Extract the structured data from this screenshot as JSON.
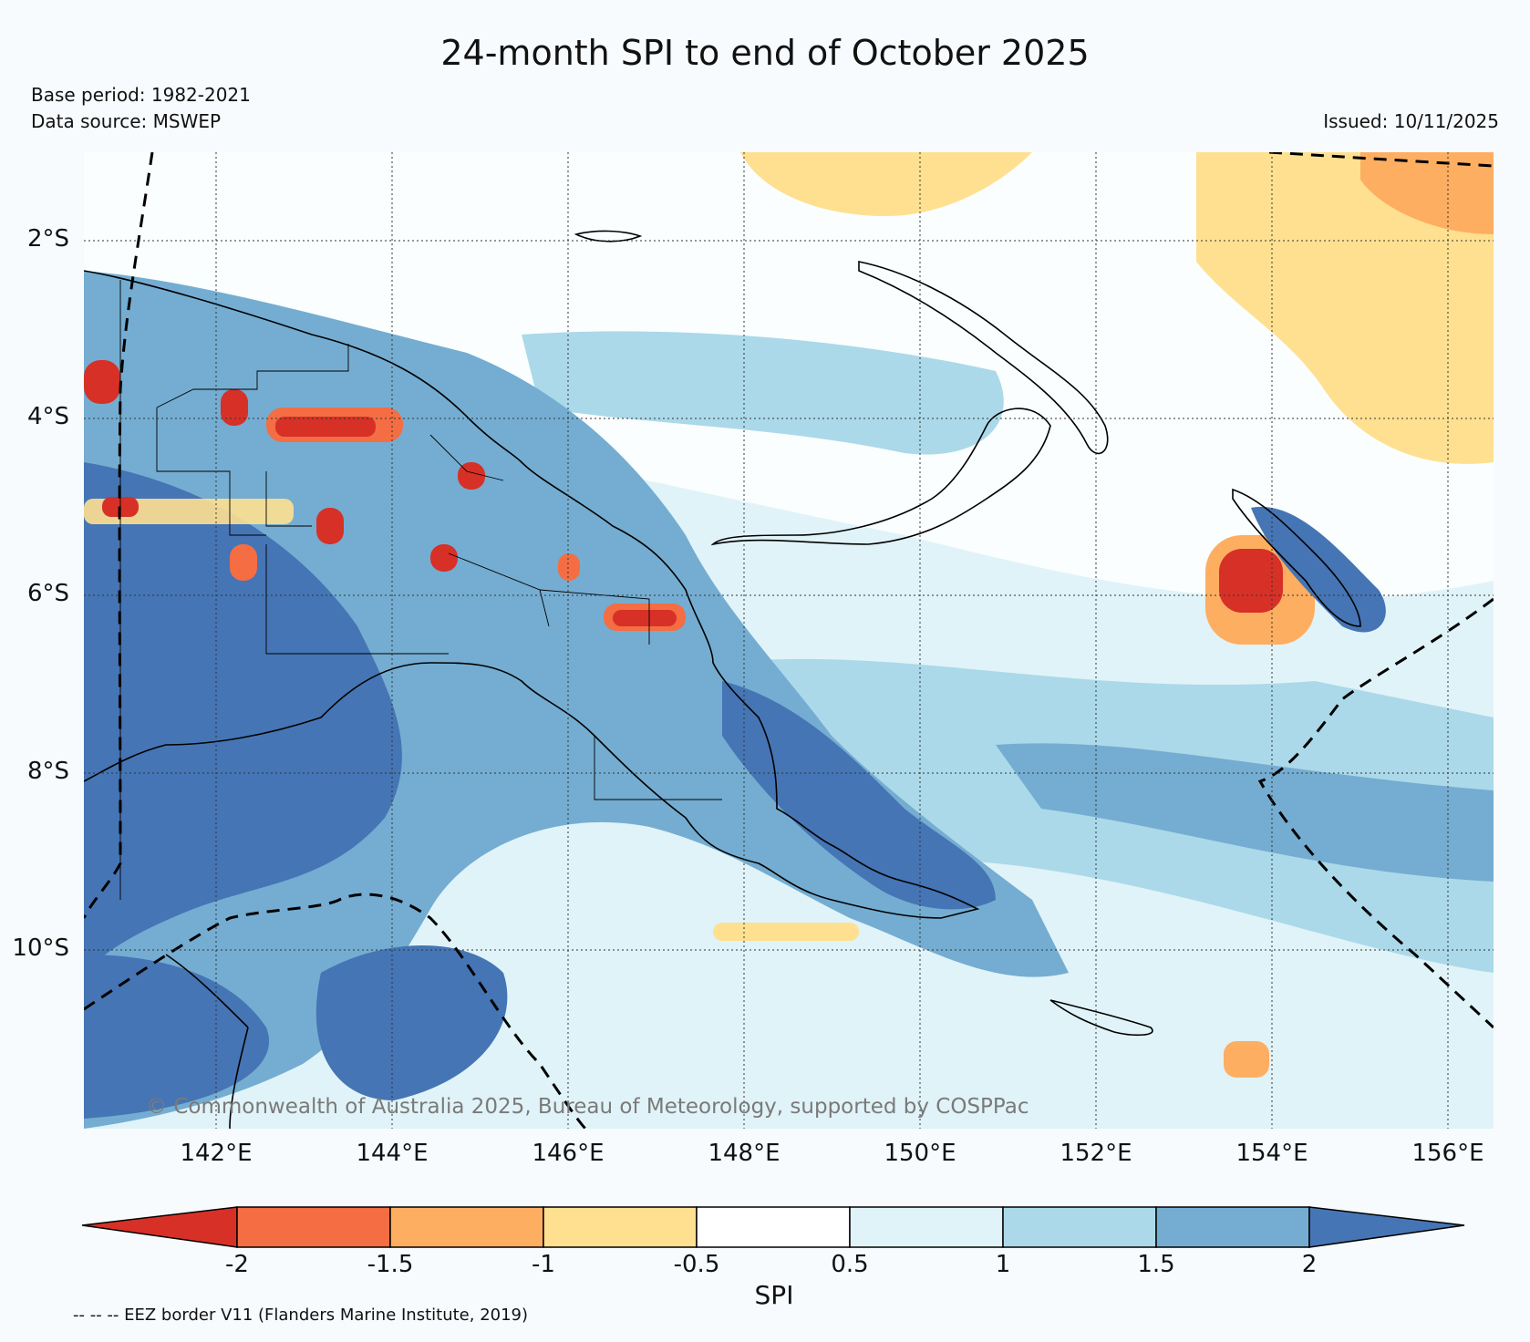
{
  "title": "24-month SPI to end of October 2025",
  "metadata": {
    "base_period": "Base period: 1982-2021",
    "data_source": "Data source: MSWEP",
    "issued": "Issued: 10/11/2025"
  },
  "map": {
    "lat_labels": [
      "2°S",
      "4°S",
      "6°S",
      "8°S",
      "10°S"
    ],
    "lon_labels": [
      "142°E",
      "144°E",
      "146°E",
      "148°E",
      "150°E",
      "152°E",
      "154°E",
      "156°E"
    ],
    "lon_range": [
      140.0,
      156.5
    ],
    "lat_range": [
      -12.0,
      -1.0
    ],
    "copyright": "© Commonwealth of Australia 2025, Bureau of Meteorology, supported by COSPPac"
  },
  "colorbar": {
    "label": "SPI",
    "ticks": [
      "-2",
      "-1.5",
      "-1",
      "-0.5",
      "0.5",
      "1",
      "1.5",
      "2"
    ],
    "colors": [
      "#d73027",
      "#f46d43",
      "#fdae61",
      "#fee090",
      "#ffffff",
      "#e0f3f8",
      "#abd9e9",
      "#74add1",
      "#4575b4"
    ]
  },
  "footnote": "-- -- -- EEZ border V11 (Flanders Marine Institute, 2019)",
  "colors": {
    "background": "#f7fbfd",
    "coastline": "#000000",
    "copyright_text": "#7a7a7a"
  }
}
